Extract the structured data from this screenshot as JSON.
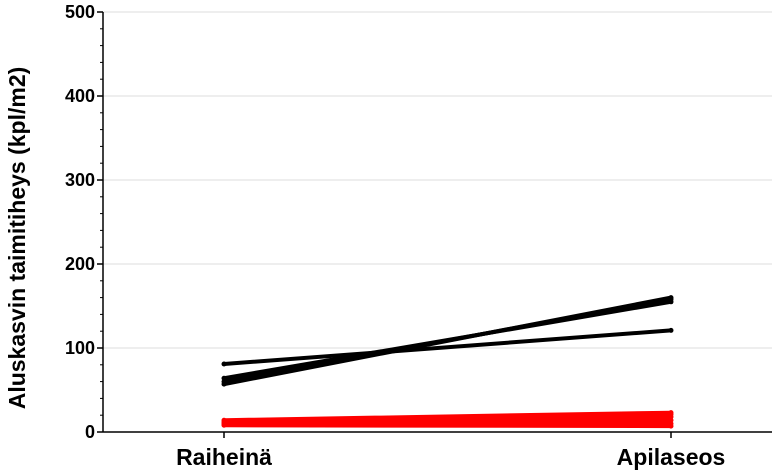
{
  "chart_data": {
    "type": "line",
    "title": "",
    "xlabel": "",
    "ylabel": "Aluskasvin taimitiheys (kpl/m2)",
    "categories": [
      "Raiheinä",
      "Apilaseos"
    ],
    "ylim": [
      0,
      500
    ],
    "yticks": [
      "0",
      "100",
      "200",
      "300",
      "400",
      "500"
    ],
    "grid": true,
    "legend": "none",
    "series": [
      {
        "color": "#000000",
        "values": [
          81,
          121
        ]
      },
      {
        "color": "#000000",
        "values": [
          64,
          155
        ]
      },
      {
        "color": "#000000",
        "values": [
          60,
          158
        ]
      },
      {
        "color": "#000000",
        "values": [
          57,
          160
        ]
      },
      {
        "color": "#ff0000",
        "values": [
          14,
          23
        ]
      },
      {
        "color": "#ff0000",
        "values": [
          12,
          21
        ]
      },
      {
        "color": "#ff0000",
        "values": [
          11,
          18
        ]
      },
      {
        "color": "#ff0000",
        "values": [
          10,
          14
        ]
      },
      {
        "color": "#ff0000",
        "values": [
          9,
          10
        ]
      },
      {
        "color": "#ff0000",
        "values": [
          8,
          7
        ]
      }
    ]
  }
}
